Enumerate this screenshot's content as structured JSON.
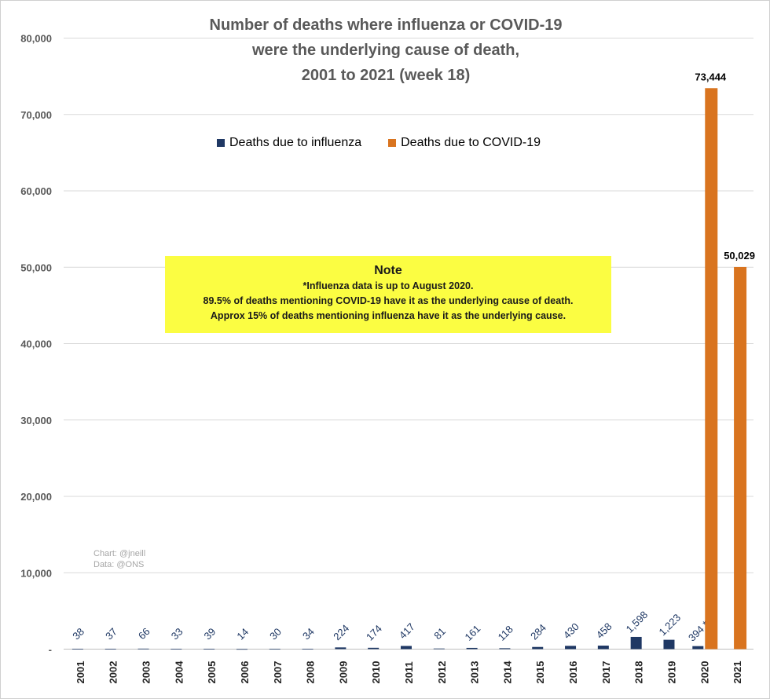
{
  "chart_data": {
    "type": "bar",
    "title_lines": [
      "Number of deaths where influenza or COVID-19",
      "were the underlying cause of death,",
      "2001 to 2021 (week 18)"
    ],
    "categories": [
      "2001",
      "2002",
      "2003",
      "2004",
      "2005",
      "2006",
      "2007",
      "2008",
      "2009",
      "2010",
      "2011",
      "2012",
      "2013",
      "2014",
      "2015",
      "2016",
      "2017",
      "2018",
      "2019",
      "2020",
      "2021"
    ],
    "series": [
      {
        "name": "Deaths due to influenza",
        "color": "#1f3864",
        "values": [
          38,
          37,
          66,
          33,
          39,
          14,
          30,
          34,
          224,
          174,
          417,
          81,
          161,
          118,
          284,
          430,
          458,
          1598,
          1223,
          394,
          null
        ],
        "labels": [
          "38",
          "37",
          "66",
          "33",
          "39",
          "14",
          "30",
          "34",
          "224",
          "174",
          "417",
          "81",
          "161",
          "118",
          "284",
          "430",
          "458",
          "1,598",
          "1,223",
          "394 *",
          ""
        ]
      },
      {
        "name": "Deaths due to COVID-19",
        "color": "#d9741f",
        "values": [
          null,
          null,
          null,
          null,
          null,
          null,
          null,
          null,
          null,
          null,
          null,
          null,
          null,
          null,
          null,
          null,
          null,
          null,
          null,
          73444,
          50029
        ],
        "labels": [
          "",
          "",
          "",
          "",
          "",
          "",
          "",
          "",
          "",
          "",
          "",
          "",
          "",
          "",
          "",
          "",
          "",
          "",
          "",
          "73,444",
          "50,029"
        ]
      }
    ],
    "ylim": [
      0,
      80000
    ],
    "yticks": [
      0,
      10000,
      20000,
      30000,
      40000,
      50000,
      60000,
      70000,
      80000
    ],
    "ytick_labels": [
      "-",
      "10,000",
      "20,000",
      "30,000",
      "40,000",
      "50,000",
      "60,000",
      "70,000",
      "80,000"
    ],
    "grid": true,
    "legend_position": "top-center",
    "note": {
      "title": "Note",
      "lines": [
        "*Influenza data is up to August 2020.",
        "89.5% of deaths mentioning COVID-19 have it as the underlying cause of death.",
        "Approx 15% of deaths mentioning influenza have it as the underlying cause."
      ]
    },
    "credits": [
      "Chart: @jneill",
      "Data: @ONS"
    ]
  }
}
